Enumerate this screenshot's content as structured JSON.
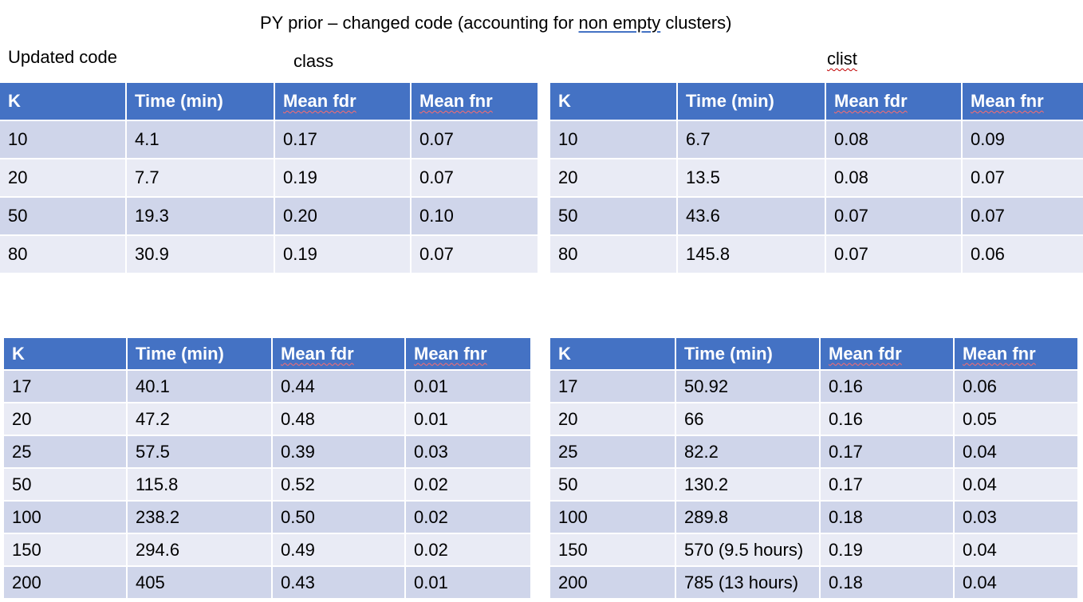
{
  "title": {
    "prefix": "PY prior – changed code (accounting for ",
    "linked": "non empty",
    "suffix": " clusters)"
  },
  "labels": {
    "updated": "Updated code",
    "class": "class",
    "clist": "clist"
  },
  "headers": [
    "K",
    "Time (min)",
    "Mean fdr",
    "Mean fnr"
  ],
  "tables": {
    "top_left": [
      [
        "10",
        "4.1",
        "0.17",
        "0.07"
      ],
      [
        "20",
        "7.7",
        "0.19",
        "0.07"
      ],
      [
        "50",
        "19.3",
        "0.20",
        "0.10"
      ],
      [
        "80",
        "30.9",
        "0.19",
        "0.07"
      ]
    ],
    "top_right": [
      [
        "10",
        "6.7",
        "0.08",
        "0.09"
      ],
      [
        "20",
        "13.5",
        "0.08",
        "0.07"
      ],
      [
        "50",
        "43.6",
        "0.07",
        "0.07"
      ],
      [
        "80",
        "145.8",
        "0.07",
        "0.06"
      ]
    ],
    "bottom_left": [
      [
        "17",
        "40.1",
        "0.44",
        "0.01"
      ],
      [
        "20",
        "47.2",
        "0.48",
        "0.01"
      ],
      [
        "25",
        "57.5",
        "0.39",
        "0.03"
      ],
      [
        "50",
        "115.8",
        "0.52",
        "0.02"
      ],
      [
        "100",
        "238.2",
        "0.50",
        "0.02"
      ],
      [
        "150",
        "294.6",
        "0.49",
        "0.02"
      ],
      [
        "200",
        "405",
        "0.43",
        "0.01"
      ]
    ],
    "bottom_right": [
      [
        "17",
        "50.92",
        "0.16",
        "0.06"
      ],
      [
        "20",
        "66",
        "0.16",
        "0.05"
      ],
      [
        "25",
        "82.2",
        "0.17",
        "0.04"
      ],
      [
        "50",
        "130.2",
        "0.17",
        "0.04"
      ],
      [
        "100",
        "289.8",
        "0.18",
        "0.03"
      ],
      [
        "150",
        "570 (9.5 hours)",
        "0.19",
        "0.04"
      ],
      [
        "200",
        "785 (13 hours)",
        "0.18",
        "0.04"
      ]
    ]
  },
  "colors": {
    "header_blue": "#4472c4",
    "row_dark": "#cfd5ea",
    "row_light": "#e9ebf5"
  }
}
